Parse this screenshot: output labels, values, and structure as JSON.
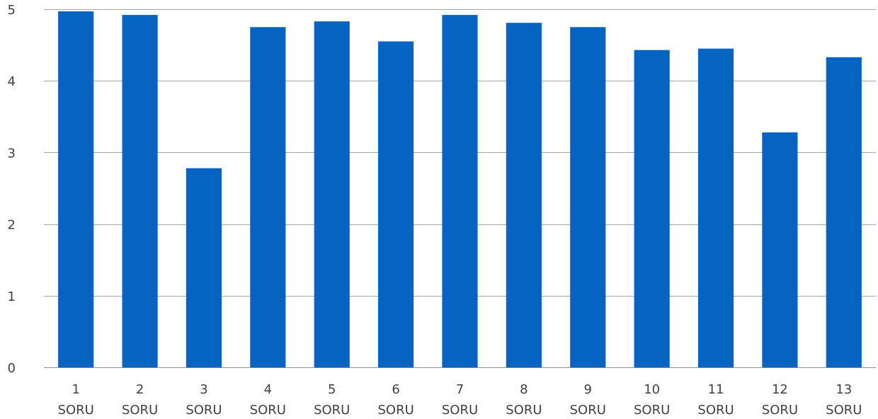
{
  "chart_data": {
    "type": "bar",
    "title": "",
    "xlabel": "",
    "ylabel": "",
    "ylim": [
      0,
      5
    ],
    "yticks": [
      "0",
      "1",
      "2",
      "3",
      "4",
      "5"
    ],
    "grid": true,
    "legend": "none",
    "bar_color": "#0563c1",
    "categories": [
      [
        "1",
        "SORU"
      ],
      [
        "2",
        "SORU"
      ],
      [
        "3",
        "SORU"
      ],
      [
        "4",
        "SORU"
      ],
      [
        "5",
        "SORU"
      ],
      [
        "6",
        "SORU"
      ],
      [
        "7",
        "SORU"
      ],
      [
        "8",
        "SORU"
      ],
      [
        "9",
        "SORU"
      ],
      [
        "10",
        "SORU"
      ],
      [
        "11",
        "SORU"
      ],
      [
        "12",
        "SORU"
      ],
      [
        "13",
        "SORU"
      ]
    ],
    "values": [
      4.97,
      4.92,
      2.78,
      4.75,
      4.83,
      4.55,
      4.92,
      4.81,
      4.75,
      4.43,
      4.45,
      3.28,
      4.33
    ]
  }
}
